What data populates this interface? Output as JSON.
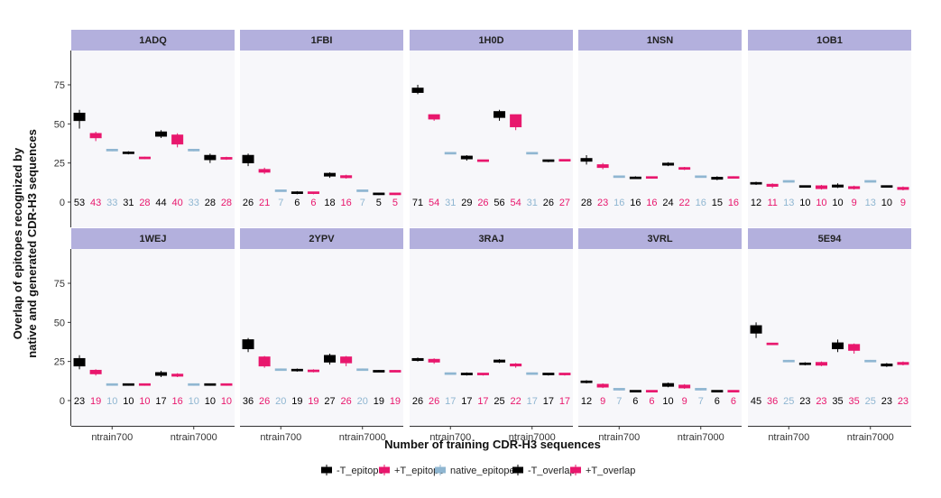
{
  "chart_data": {
    "type": "boxplot",
    "xlabel": "Number of training CDR-H3 sequences",
    "ylabel_lines": [
      "Overlap of epitopes recognized by",
      "native and generated CDR-H3 sequences"
    ],
    "ylim": [
      0,
      90
    ],
    "yticks": [
      0,
      25,
      50,
      75
    ],
    "groups": [
      "ntrain700",
      "ntrain7000"
    ],
    "series_order": [
      "-T_epitope",
      "+T_epitope",
      "native_epitope",
      "-T_overlap",
      "+T_overlap"
    ],
    "legend": [
      {
        "name": "-T_epitope",
        "color": "#000000"
      },
      {
        "name": "+T_epitope",
        "color": "#e8176d"
      },
      {
        "name": "native_epitope",
        "color": "#8fb6d1"
      },
      {
        "name": "-T_overlap",
        "color": "#000000"
      },
      {
        "name": "+T_overlap",
        "color": "#e8176d"
      }
    ],
    "panels": [
      {
        "title": "1ADQ",
        "boxes": [
          [
            [
              47,
              52,
              55,
              57,
              59
            ],
            [
              39,
              41,
              43,
              44,
              45
            ],
            [
              32.5,
              33,
              33,
              33.5,
              33.5
            ],
            [
              30.5,
              31,
              31.5,
              32,
              32.5
            ],
            [
              27.5,
              28,
              28.5,
              28.5,
              29
            ],
            [
              41,
              42,
              44,
              45,
              46
            ],
            [
              35,
              37,
              40,
              43,
              44
            ],
            [
              32.5,
              33,
              33,
              33.5,
              33.5
            ],
            [
              25,
              27,
              28,
              30,
              31
            ],
            [
              27,
              27.5,
              28,
              28.5,
              29
            ]
          ],
          [
            53,
            43,
            33,
            31,
            28,
            44,
            40,
            33,
            28,
            28
          ]
        ]
      },
      {
        "title": "1FBI",
        "boxes": [
          [
            [
              23,
              25,
              27,
              30,
              31
            ],
            [
              18,
              19,
              20,
              21,
              22
            ],
            [
              7,
              7,
              7,
              7.5,
              7.5
            ],
            [
              5,
              5.5,
              6,
              6.5,
              7
            ],
            [
              5,
              5.5,
              6,
              6.5,
              6.5
            ],
            [
              15.5,
              16.5,
              17.5,
              18.5,
              19
            ],
            [
              15,
              15.5,
              16,
              17,
              17.5
            ],
            [
              7,
              7,
              7,
              7.5,
              7.5
            ],
            [
              4.5,
              5,
              5,
              5.5,
              5.5
            ],
            [
              4.5,
              5,
              5,
              5.5,
              5.5
            ]
          ],
          [
            26,
            21,
            7,
            6,
            6,
            18,
            16,
            7,
            5,
            5
          ]
        ]
      },
      {
        "title": "1H0D",
        "boxes": [
          [
            [
              69,
              70,
              71,
              73,
              75
            ],
            [
              52,
              53,
              54,
              56,
              56
            ],
            [
              31,
              31,
              31,
              31.5,
              31.5
            ],
            [
              26.5,
              27.5,
              28.5,
              29.5,
              30
            ],
            [
              26,
              26,
              26.5,
              27,
              27
            ],
            [
              52,
              54,
              56,
              58,
              59
            ],
            [
              46,
              48,
              51,
              56,
              56
            ],
            [
              31,
              31,
              31,
              31.5,
              31.5
            ],
            [
              25.5,
              26,
              26.5,
              27,
              27
            ],
            [
              26,
              26.5,
              26.5,
              27,
              27
            ]
          ],
          [
            71,
            54,
            31,
            29,
            26,
            56,
            54,
            31,
            26,
            27
          ]
        ]
      },
      {
        "title": "1NSN",
        "boxes": [
          [
            [
              24,
              26,
              27,
              28,
              30
            ],
            [
              21,
              22,
              23,
              24,
              25
            ],
            [
              16,
              16,
              16,
              16.5,
              16.5
            ],
            [
              15,
              15,
              15.5,
              16,
              16.5
            ],
            [
              15,
              15.5,
              15.5,
              16,
              16
            ],
            [
              23,
              23.5,
              24,
              25,
              25.5
            ],
            [
              20.5,
              21,
              22,
              22,
              22.5
            ],
            [
              16,
              16,
              16,
              16.5,
              16.5
            ],
            [
              14,
              14.5,
              15,
              16,
              16.5
            ],
            [
              15.5,
              15.5,
              16,
              16,
              16.5
            ]
          ],
          [
            28,
            23,
            16,
            16,
            16,
            24,
            22,
            16,
            15,
            16
          ]
        ]
      },
      {
        "title": "1OB1",
        "boxes": [
          [
            [
              11,
              11.5,
              12,
              12.5,
              13
            ],
            [
              9,
              10,
              11,
              11.5,
              12
            ],
            [
              13,
              13,
              13,
              13.5,
              13.5
            ],
            [
              9.5,
              9.5,
              10,
              10.5,
              10.5
            ],
            [
              8,
              8.5,
              9.5,
              10.5,
              11
            ],
            [
              9,
              9.5,
              10,
              11,
              12
            ],
            [
              8,
              8.5,
              9,
              10,
              10.5
            ],
            [
              13,
              13,
              13,
              13.5,
              13.5
            ],
            [
              9.5,
              9.5,
              10,
              10.5,
              10.5
            ],
            [
              7.5,
              8,
              8.5,
              9.5,
              10
            ]
          ],
          [
            12,
            11,
            13,
            10,
            10,
            10,
            9,
            13,
            10,
            9
          ]
        ]
      },
      {
        "title": "1WEJ",
        "boxes": [
          [
            [
              20,
              22,
              24,
              27,
              29
            ],
            [
              16,
              17,
              18,
              19.5,
              20
            ],
            [
              9.5,
              10,
              10,
              10.5,
              10.5
            ],
            [
              9.5,
              10,
              10,
              10.5,
              10.5
            ],
            [
              9.5,
              10,
              10,
              10.5,
              10.5
            ],
            [
              15,
              16,
              17,
              18,
              19
            ],
            [
              15,
              15.5,
              16,
              17,
              17.5
            ],
            [
              9.5,
              10,
              10,
              10.5,
              10.5
            ],
            [
              9.5,
              10,
              10,
              10.5,
              10.5
            ],
            [
              9.5,
              10,
              10,
              10.5,
              10.5
            ]
          ],
          [
            23,
            19,
            10,
            10,
            10,
            17,
            16,
            10,
            10,
            10
          ]
        ]
      },
      {
        "title": "2YPV",
        "boxes": [
          [
            [
              31,
              33,
              36,
              39,
              40
            ],
            [
              21,
              22,
              25,
              28,
              28.5
            ],
            [
              19.5,
              19.5,
              20,
              20,
              20.5
            ],
            [
              18.5,
              19,
              19.5,
              20,
              20.5
            ],
            [
              18,
              18.5,
              19,
              19.5,
              20
            ],
            [
              23,
              24.5,
              26,
              29,
              30
            ],
            [
              22,
              24,
              26,
              28,
              28.5
            ],
            [
              19.5,
              19.5,
              20,
              20,
              20.5
            ],
            [
              18.5,
              18.5,
              19,
              19,
              19.5
            ],
            [
              18.5,
              18.5,
              19,
              19,
              19.5
            ]
          ],
          [
            36,
            26,
            20,
            19,
            19,
            27,
            26,
            20,
            19,
            19
          ]
        ]
      },
      {
        "title": "3RAJ",
        "boxes": [
          [
            [
              25,
              25.5,
              26.5,
              27,
              27.5
            ],
            [
              23.5,
              24.5,
              25.5,
              26.5,
              27
            ],
            [
              16.5,
              17,
              17,
              17.5,
              17.5
            ],
            [
              16,
              16.5,
              17,
              17.5,
              18
            ],
            [
              16,
              16.5,
              17,
              17.5,
              17.5
            ],
            [
              24,
              24.5,
              25,
              26,
              26.5
            ],
            [
              21,
              22,
              22.5,
              23.5,
              24
            ],
            [
              16.5,
              17,
              17,
              17.5,
              17.5
            ],
            [
              16,
              16.5,
              17,
              17.5,
              17.5
            ],
            [
              16,
              16.5,
              17,
              17.5,
              17.5
            ]
          ],
          [
            26,
            26,
            17,
            17,
            17,
            25,
            22,
            17,
            17,
            17
          ]
        ]
      },
      {
        "title": "3VRL",
        "boxes": [
          [
            [
              11,
              11.5,
              12,
              12.5,
              13
            ],
            [
              8,
              8.5,
              9.5,
              10.5,
              11
            ],
            [
              6.5,
              7,
              7,
              7.5,
              7.5
            ],
            [
              5.5,
              5.5,
              6,
              6.5,
              6.5
            ],
            [
              5.5,
              5.5,
              6,
              6.5,
              6.5
            ],
            [
              8.5,
              9,
              10,
              11,
              11.5
            ],
            [
              7.5,
              8,
              9,
              10,
              10.5
            ],
            [
              6.5,
              7,
              7,
              7.5,
              7.5
            ],
            [
              5.5,
              5.5,
              6,
              6.5,
              6.5
            ],
            [
              5.5,
              5.5,
              6,
              6.5,
              6.5
            ]
          ],
          [
            12,
            9,
            7,
            6,
            6,
            10,
            9,
            7,
            6,
            6
          ]
        ]
      },
      {
        "title": "5E94",
        "boxes": [
          [
            [
              40,
              43,
              46,
              48,
              50
            ],
            [
              35.5,
              36,
              36,
              36.5,
              36.5
            ],
            [
              25,
              25,
              25.5,
              25.5,
              26
            ],
            [
              22.5,
              23,
              23.5,
              24,
              24.5
            ],
            [
              22,
              22.5,
              23.5,
              24.5,
              25
            ],
            [
              31,
              33,
              35,
              37,
              39
            ],
            [
              30,
              32,
              34,
              36,
              36.5
            ],
            [
              25,
              25,
              25.5,
              25.5,
              26
            ],
            [
              21.5,
              22,
              23,
              23.5,
              24
            ],
            [
              22.5,
              23,
              23.5,
              24.5,
              25
            ]
          ],
          [
            45,
            36,
            25,
            23,
            23,
            35,
            35,
            25,
            23,
            23
          ]
        ]
      }
    ]
  }
}
